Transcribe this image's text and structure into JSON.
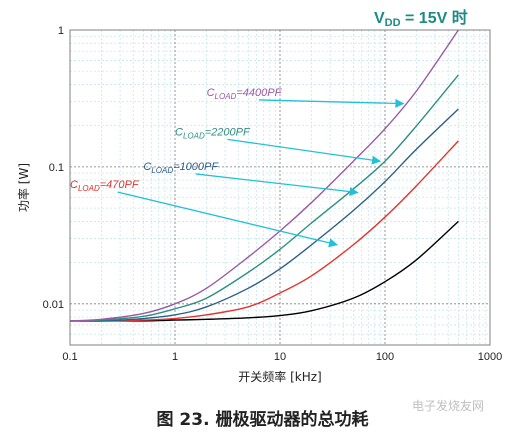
{
  "header_note": {
    "label_prefix": "V",
    "label_sub": "DD",
    "label_suffix": " = 15V 时"
  },
  "caption": "图 23. 栅极驱动器的总功耗",
  "watermark": "电子发烧友网",
  "chart_data": {
    "type": "line",
    "title": "",
    "xlabel": "开关频率 [kHz]",
    "ylabel": "功率 [W]",
    "xscale": "log",
    "yscale": "log",
    "xlim": [
      0.1,
      1000
    ],
    "ylim": [
      0.005,
      1
    ],
    "grid": true,
    "x_ticks": [
      0.1,
      1,
      10,
      100,
      1000
    ],
    "x_tick_labels": [
      "0.1",
      "1",
      "10",
      "100",
      "1000"
    ],
    "y_ticks": [
      0.01,
      0.1,
      1
    ],
    "y_tick_labels": [
      "0.01",
      "0.1",
      "1"
    ],
    "x": [
      0.1,
      0.2,
      0.5,
      1,
      2,
      5,
      10,
      20,
      50,
      100,
      200,
      500
    ],
    "series": [
      {
        "name": "",
        "color": "#000000",
        "values": [
          0.0075,
          0.0075,
          0.0075,
          0.0076,
          0.0077,
          0.0079,
          0.0082,
          0.0089,
          0.011,
          0.0145,
          0.021,
          0.04
        ]
      },
      {
        "name": "CLOAD=470PF",
        "name_main": "C",
        "name_sub": "LOAD",
        "name_rest": "=470PF",
        "color": "#e3342f",
        "values": [
          0.0075,
          0.0075,
          0.0076,
          0.0078,
          0.0083,
          0.0095,
          0.012,
          0.016,
          0.027,
          0.043,
          0.073,
          0.155
        ]
      },
      {
        "name": "CLOAD=1000PF",
        "name_main": "C",
        "name_sub": "LOAD",
        "name_rest": "=1000PF",
        "color": "#2b5f8a",
        "values": [
          0.0075,
          0.0075,
          0.0078,
          0.0083,
          0.0095,
          0.013,
          0.018,
          0.027,
          0.048,
          0.078,
          0.135,
          0.265
        ]
      },
      {
        "name": "CLOAD=2200PF",
        "name_main": "C",
        "name_sub": "LOAD",
        "name_rest": "=2200PF",
        "color": "#2f8f80",
        "values": [
          0.0075,
          0.0076,
          0.0081,
          0.0092,
          0.011,
          0.017,
          0.025,
          0.039,
          0.069,
          0.11,
          0.2,
          0.47
        ]
      },
      {
        "name": "CLOAD=4400PF",
        "name_main": "C",
        "name_sub": "LOAD",
        "name_rest": "=4400PF",
        "color": "#9a5aa4",
        "values": [
          0.0075,
          0.0077,
          0.0085,
          0.01,
          0.013,
          0.022,
          0.034,
          0.055,
          0.11,
          0.19,
          0.36,
          1.0
        ]
      }
    ],
    "annotations": [
      {
        "series": 4,
        "text_x": 2.0,
        "text_y": 0.33,
        "arrow_to_x": 150,
        "arrow_to_y": 0.29
      },
      {
        "series": 3,
        "text_x": 1.0,
        "text_y": 0.17,
        "arrow_to_x": 90,
        "arrow_to_y": 0.11
      },
      {
        "series": 2,
        "text_x": 0.5,
        "text_y": 0.095,
        "arrow_to_x": 55,
        "arrow_to_y": 0.065
      },
      {
        "series": 1,
        "text_x": 0.1,
        "text_y": 0.07,
        "arrow_to_x": 35,
        "arrow_to_y": 0.027
      }
    ]
  }
}
